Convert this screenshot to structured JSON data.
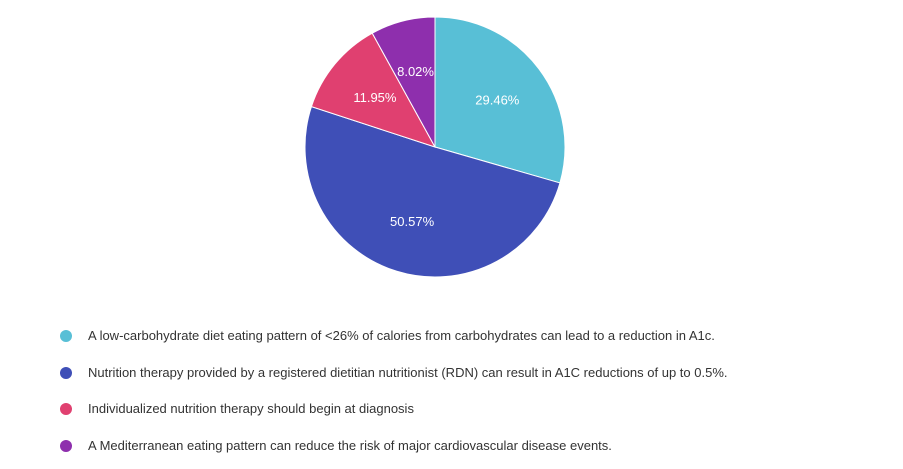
{
  "chart_data": {
    "type": "pie",
    "title": "",
    "slices": [
      {
        "label": "A low-carbohydrate diet eating pattern of <26% of calories from carbohydrates can lead to a reduction in A1c.",
        "value": 29.46,
        "display": "29.46%",
        "color": "#58bfd6"
      },
      {
        "label": "Nutrition therapy provided by a registered dietitian nutritionist (RDN) can result in A1C reductions of up to 0.5%.",
        "value": 50.57,
        "display": "50.57%",
        "color": "#3f4fb7"
      },
      {
        "label": "Individualized nutrition therapy should begin at diagnosis",
        "value": 11.95,
        "display": "11.95%",
        "color": "#e04070"
      },
      {
        "label": "A Mediterranean eating pattern can reduce the risk of major cardiovascular disease events.",
        "value": 8.02,
        "display": "8.02%",
        "color": "#8e2fad"
      }
    ],
    "start_angle": "12 o'clock",
    "direction": "clockwise",
    "legend_position": "bottom-left"
  }
}
